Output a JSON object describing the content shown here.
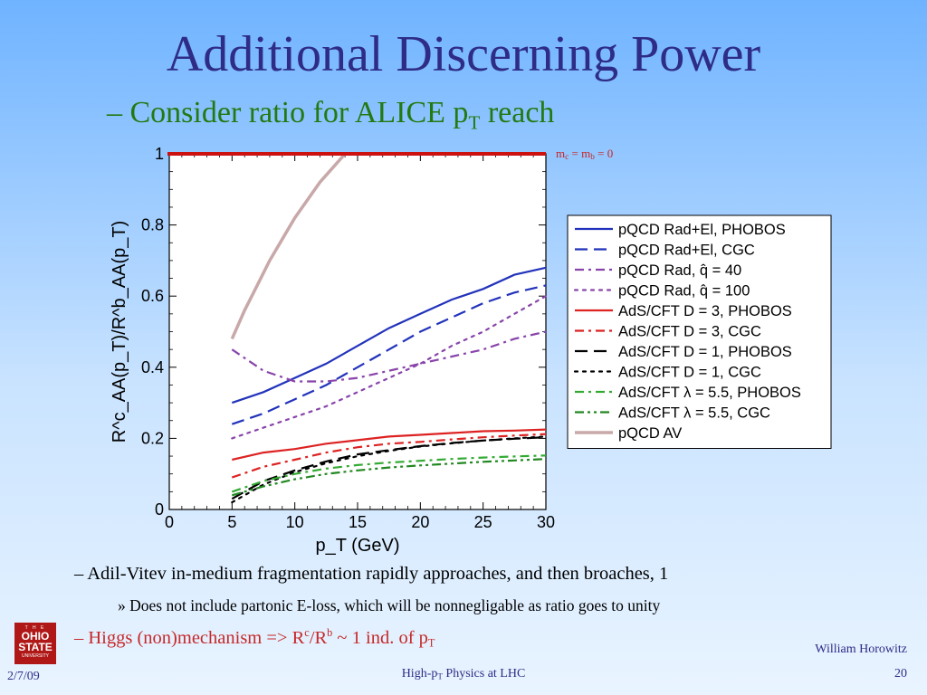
{
  "slide": {
    "title": "Additional Discerning Power",
    "subtitle_prefix": "– Consider ratio for ALICE p",
    "subtitle_sub": "T",
    "subtitle_suffix": " reach"
  },
  "mass_label": {
    "a": "m",
    "a_sub": "c",
    "mid": " = m",
    "b_sub": "b",
    "end": " = 0"
  },
  "bullets": {
    "b1": "–  Adil-Vitev in-medium fragmentation rapidly approaches, and then broaches, 1",
    "b2": "»  Does not include partonic E-loss, which will be nonnegligable as ratio goes to unity",
    "b3_a": "–  Higgs (non)mechanism => R",
    "b3_sup1": "c",
    "b3_b": "/R",
    "b3_sup2": "b",
    "b3_c": " ~ 1 ind. of p",
    "b3_sub": "T"
  },
  "footer": {
    "date": "2/7/09",
    "center_a": "High-p",
    "center_sub": "T",
    "center_b": " Physics at LHC",
    "author": "William Horowitz",
    "page": "20"
  },
  "logo": {
    "top": "T H E",
    "line1": "OHIO",
    "line2": "STATE",
    "bottom": "UNIVERSITY"
  },
  "chart_data": {
    "type": "line",
    "xlabel": "p_T (GeV)",
    "ylabel": "R^c_AA(p_T)/R^b_AA(p_T)",
    "xlim": [
      0,
      30
    ],
    "ylim": [
      0,
      1
    ],
    "xticks": [
      "0",
      "5",
      "10",
      "15",
      "20",
      "25",
      "30"
    ],
    "yticks": [
      "0",
      "0.2",
      "0.4",
      "0.6",
      "0.8",
      "1"
    ],
    "legend_position": "right",
    "series": [
      {
        "name": "pQCD Rad+El, PHOBOS",
        "color": "#2233bb",
        "dash": "solid",
        "x": [
          5,
          7.5,
          10,
          12.5,
          15,
          17.5,
          20,
          22.5,
          25,
          27.5,
          30
        ],
        "y": [
          0.3,
          0.33,
          0.37,
          0.41,
          0.46,
          0.51,
          0.55,
          0.59,
          0.62,
          0.66,
          0.68
        ]
      },
      {
        "name": "pQCD Rad+El, CGC",
        "color": "#2233bb",
        "dash": "long",
        "x": [
          5,
          7.5,
          10,
          12.5,
          15,
          17.5,
          20,
          22.5,
          25,
          27.5,
          30
        ],
        "y": [
          0.24,
          0.27,
          0.31,
          0.35,
          0.4,
          0.45,
          0.5,
          0.54,
          0.58,
          0.61,
          0.63
        ]
      },
      {
        "name": "pQCD Rad, q̂ = 40",
        "color": "#8844aa",
        "dash": "dashdot",
        "x": [
          5,
          7.5,
          10,
          12.5,
          15,
          17.5,
          20,
          22.5,
          25,
          27.5,
          30
        ],
        "y": [
          0.45,
          0.39,
          0.36,
          0.36,
          0.37,
          0.39,
          0.41,
          0.43,
          0.45,
          0.48,
          0.5
        ]
      },
      {
        "name": "pQCD Rad, q̂ = 100",
        "color": "#8844aa",
        "dash": "dotted",
        "x": [
          5,
          7.5,
          10,
          12.5,
          15,
          17.5,
          20,
          22.5,
          25,
          27.5,
          30
        ],
        "y": [
          0.2,
          0.23,
          0.26,
          0.29,
          0.33,
          0.37,
          0.41,
          0.46,
          0.5,
          0.55,
          0.6
        ]
      },
      {
        "name": "AdS/CFT D = 3, PHOBOS",
        "color": "#dd2222",
        "dash": "solid",
        "x": [
          5,
          7.5,
          10,
          12.5,
          15,
          17.5,
          20,
          22.5,
          25,
          27.5,
          30
        ],
        "y": [
          0.14,
          0.16,
          0.17,
          0.185,
          0.195,
          0.205,
          0.21,
          0.215,
          0.22,
          0.222,
          0.225
        ]
      },
      {
        "name": "AdS/CFT D = 3, CGC",
        "color": "#dd2222",
        "dash": "dashdot",
        "x": [
          5,
          7.5,
          10,
          12.5,
          15,
          17.5,
          20,
          22.5,
          25,
          27.5,
          30
        ],
        "y": [
          0.09,
          0.12,
          0.14,
          0.16,
          0.175,
          0.185,
          0.19,
          0.197,
          0.203,
          0.208,
          0.212
        ]
      },
      {
        "name": "AdS/CFT D = 1, PHOBOS",
        "color": "#000000",
        "dash": "long",
        "x": [
          5,
          7.5,
          10,
          12.5,
          15,
          17.5,
          20,
          22.5,
          25,
          27.5,
          30
        ],
        "y": [
          0.03,
          0.08,
          0.11,
          0.135,
          0.155,
          0.167,
          0.178,
          0.187,
          0.194,
          0.199,
          0.203
        ]
      },
      {
        "name": "AdS/CFT D = 1, CGC",
        "color": "#000000",
        "dash": "dotted",
        "x": [
          5,
          7.5,
          10,
          12.5,
          15,
          17.5,
          20,
          22.5,
          25,
          27.5,
          30
        ],
        "y": [
          0.02,
          0.07,
          0.105,
          0.13,
          0.15,
          0.165,
          0.177,
          0.186,
          0.194,
          0.2,
          0.205
        ]
      },
      {
        "name": "AdS/CFT λ = 5.5, PHOBOS",
        "color": "#33aa33",
        "dash": "dashdot",
        "x": [
          5,
          7.5,
          10,
          12.5,
          15,
          17.5,
          20,
          22.5,
          25,
          27.5,
          30
        ],
        "y": [
          0.05,
          0.08,
          0.1,
          0.115,
          0.125,
          0.132,
          0.137,
          0.142,
          0.146,
          0.149,
          0.152
        ]
      },
      {
        "name": "AdS/CFT λ = 5.5, CGC",
        "color": "#228822",
        "dash": "dashdotdot",
        "x": [
          5,
          7.5,
          10,
          12.5,
          15,
          17.5,
          20,
          22.5,
          25,
          27.5,
          30
        ],
        "y": [
          0.04,
          0.065,
          0.085,
          0.1,
          0.11,
          0.118,
          0.124,
          0.129,
          0.134,
          0.138,
          0.142
        ]
      },
      {
        "name": "pQCD AV",
        "color": "#c8a8a8",
        "dash": "solid",
        "x": [
          5,
          6,
          7,
          8,
          9,
          10,
          11,
          12,
          13,
          14
        ],
        "y": [
          0.48,
          0.56,
          0.63,
          0.7,
          0.76,
          0.82,
          0.87,
          0.92,
          0.96,
          1.0
        ]
      }
    ],
    "overlay_line": {
      "y": 1,
      "color": "#cc1111"
    }
  }
}
